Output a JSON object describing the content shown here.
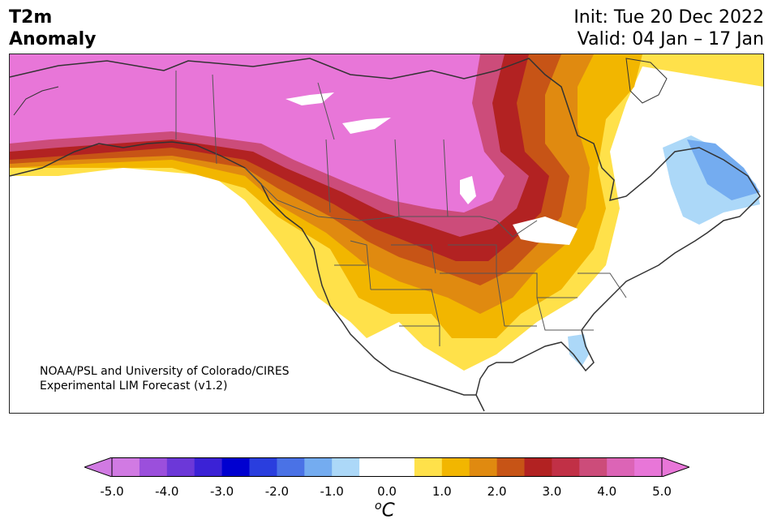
{
  "header": {
    "title_line1": "T2m",
    "title_line2": "Anomaly",
    "init": "Init: Tue 20 Dec 2022",
    "valid": "Valid: 04 Jan – 17 Jan"
  },
  "map": {
    "credit_line1": "NOAA/PSL and University of Colorado/CIRES",
    "credit_line2": "Experimental LIM Forecast (v1.2)"
  },
  "colorbar": {
    "colors": [
      "#d17ae3",
      "#9b4fdc",
      "#6c38d8",
      "#3b22d6",
      "#0000d0",
      "#2a3ede",
      "#4a72e6",
      "#74acf0",
      "#acd8f8",
      "#ffffff",
      "#ffffff",
      "#ffe14a",
      "#f2b600",
      "#e08a10",
      "#c75416",
      "#b22222",
      "#c13046",
      "#cc4c7a",
      "#dc64b6",
      "#e876d8"
    ],
    "ticks": [
      "-5.0",
      "-4.0",
      "-3.0",
      "-2.0",
      "-1.0",
      "0.0",
      "1.0",
      "2.0",
      "3.0",
      "4.0",
      "5.0"
    ],
    "unit": "C",
    "unit_prefix": "o"
  }
}
